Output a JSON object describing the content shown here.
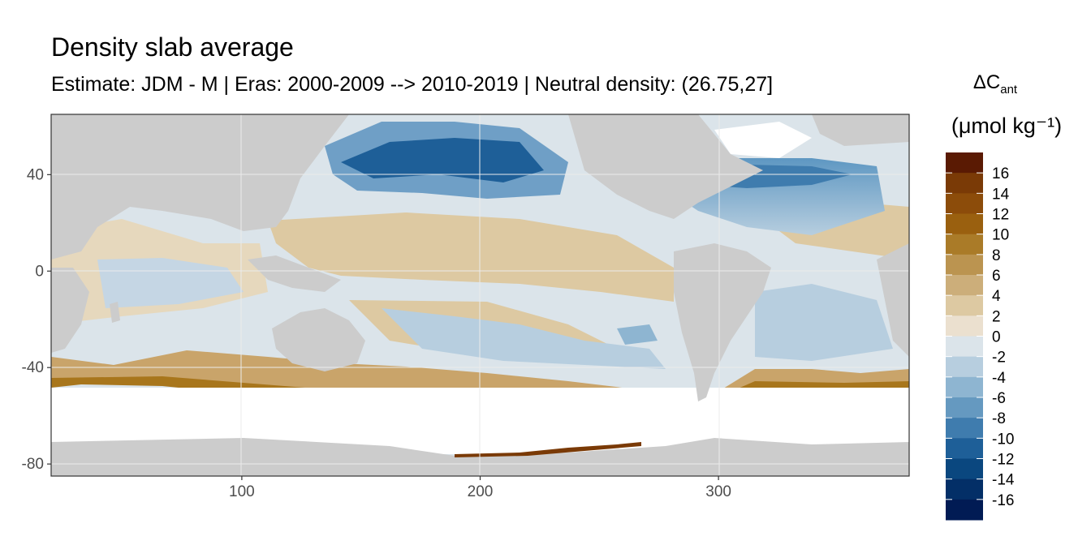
{
  "chart_data": {
    "type": "heatmap",
    "title": "Density slab average",
    "subtitle": "Estimate: JDM - M | Eras: 2000-2009 --> 2010-2019 | Neutral density: (26.75,27]",
    "xlabel": "",
    "ylabel": "",
    "xlim": [
      20,
      380
    ],
    "ylim": [
      -85,
      65
    ],
    "x_ticks": [
      100,
      200,
      300
    ],
    "y_ticks": [
      40,
      0,
      -40,
      -80
    ],
    "grid": true,
    "legend": {
      "title": "ΔC",
      "title_subscript": "ant",
      "units": "(μmol kg⁻¹)",
      "placement": "right",
      "labels": [
        "16",
        "14",
        "12",
        "10",
        "8",
        "6",
        "4",
        "2",
        "0",
        "-2",
        "-4",
        "-6",
        "-8",
        "-10",
        "-12",
        "-14",
        "-16"
      ],
      "colors": [
        "#5a1a03",
        "#7a3a06",
        "#8c4c0a",
        "#9a600f",
        "#aa7b28",
        "#bb9450",
        "#ccae7a",
        "#ddc9a2",
        "#ebe0cf",
        "#dbe4ea",
        "#b7cedf",
        "#8eb5d1",
        "#6599c0",
        "#3f7cae",
        "#1e5f98",
        "#0a477f",
        "#032f67",
        "#011b54"
      ]
    },
    "background": {
      "land_color": "#cccccc",
      "nodata_color": "#ffffff",
      "panel_border": "#333333"
    }
  }
}
